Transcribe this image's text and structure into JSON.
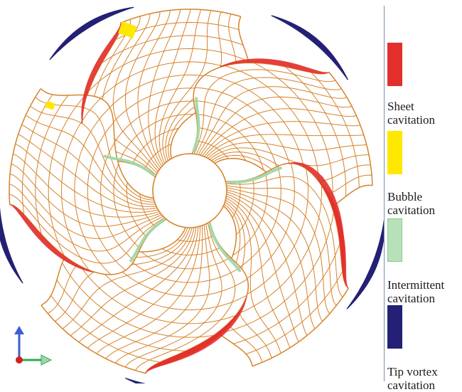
{
  "legend": {
    "items": [
      {
        "line1": "Sheet",
        "line2": "cavitation",
        "color": "#e32f2a"
      },
      {
        "line1": "Bubble",
        "line2": "cavitation",
        "color": "#ffe800"
      },
      {
        "line1": "Intermittent",
        "line2": "cavitation",
        "color": "#b7e2b7"
      },
      {
        "line1": "Tip vortex",
        "line2": "cavitation",
        "color": "#232075"
      }
    ]
  },
  "colors": {
    "blade_mesh": "#d6822a",
    "divider": "#7a8fb0",
    "axis_vertical": "#3b5fd0",
    "axis_horizontal": "#2eaa52",
    "axis_origin": "#d42020"
  }
}
